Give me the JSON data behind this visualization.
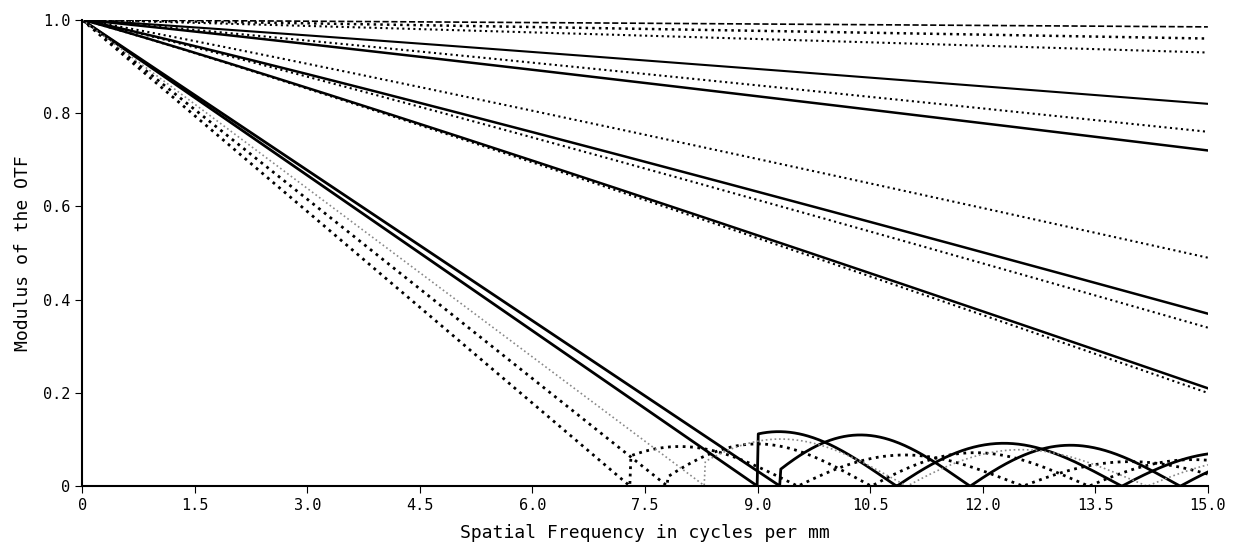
{
  "title": "",
  "xlabel": "Spatial Frequency in cycles per mm",
  "ylabel": "Modulus of the OTF",
  "xlim": [
    0,
    15.0
  ],
  "ylim": [
    0,
    1.0
  ],
  "xticks": [
    0,
    1.5,
    3.0,
    4.5,
    6.0,
    7.5,
    9.0,
    10.5,
    12.0,
    13.5,
    15.0
  ],
  "yticks": [
    0,
    0.2,
    0.4,
    0.6,
    0.8,
    1.0
  ],
  "background_color": "#ffffff",
  "smooth_curves": [
    {
      "ls": "--",
      "lw": 1.2,
      "color": "#000000",
      "end": 0.985
    },
    {
      "ls": ":",
      "lw": 1.8,
      "color": "#000000",
      "end": 0.96
    },
    {
      "ls": ":",
      "lw": 1.5,
      "color": "#000000",
      "end": 0.93
    },
    {
      "ls": "-",
      "lw": 1.5,
      "color": "#000000",
      "end": 0.82
    },
    {
      "ls": ":",
      "lw": 1.5,
      "color": "#000000",
      "end": 0.76
    },
    {
      "ls": "-",
      "lw": 1.8,
      "color": "#000000",
      "end": 0.72
    },
    {
      "ls": ":",
      "lw": 1.5,
      "color": "#000000",
      "end": 0.49
    },
    {
      "ls": "-",
      "lw": 1.8,
      "color": "#000000",
      "end": 0.37
    },
    {
      "ls": ":",
      "lw": 1.5,
      "color": "#000000",
      "end": 0.34
    },
    {
      "ls": "-",
      "lw": 1.8,
      "color": "#000000",
      "end": 0.21
    },
    {
      "ls": ":",
      "lw": 1.5,
      "color": "#000000",
      "end": 0.2
    }
  ],
  "oscillating_curves": [
    {
      "ls": "-",
      "lw": 2.0,
      "color": "#000000",
      "zero": 9.3,
      "amp": 0.12,
      "period": 2.8,
      "phase": 0.3
    },
    {
      "ls": "-",
      "lw": 2.0,
      "color": "#000000",
      "zero": 9.0,
      "amp": 0.12,
      "period": 3.0,
      "phase": 1.2
    },
    {
      "ls": ":",
      "lw": 2.0,
      "color": "#000000",
      "zero": 7.8,
      "amp": 0.1,
      "period": 2.9,
      "phase": 0.2
    },
    {
      "ls": ":",
      "lw": 2.0,
      "color": "#000000",
      "zero": 7.3,
      "amp": 0.09,
      "period": 3.0,
      "phase": 0.8
    },
    {
      "ls": ":",
      "lw": 1.2,
      "color": "#888888",
      "zero": 8.3,
      "amp": 0.11,
      "period": 3.2,
      "phase": 0.5
    }
  ]
}
